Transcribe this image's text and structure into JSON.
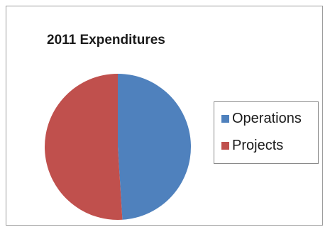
{
  "chart_data": {
    "type": "pie",
    "title": "2011 Expenditures",
    "categories": [
      "Operations",
      "Projects"
    ],
    "values": [
      49,
      51
    ],
    "colors": [
      "#4f81bd",
      "#c0504d"
    ],
    "legend_position": "right",
    "series": [
      {
        "values": [
          49,
          51
        ]
      }
    ]
  }
}
